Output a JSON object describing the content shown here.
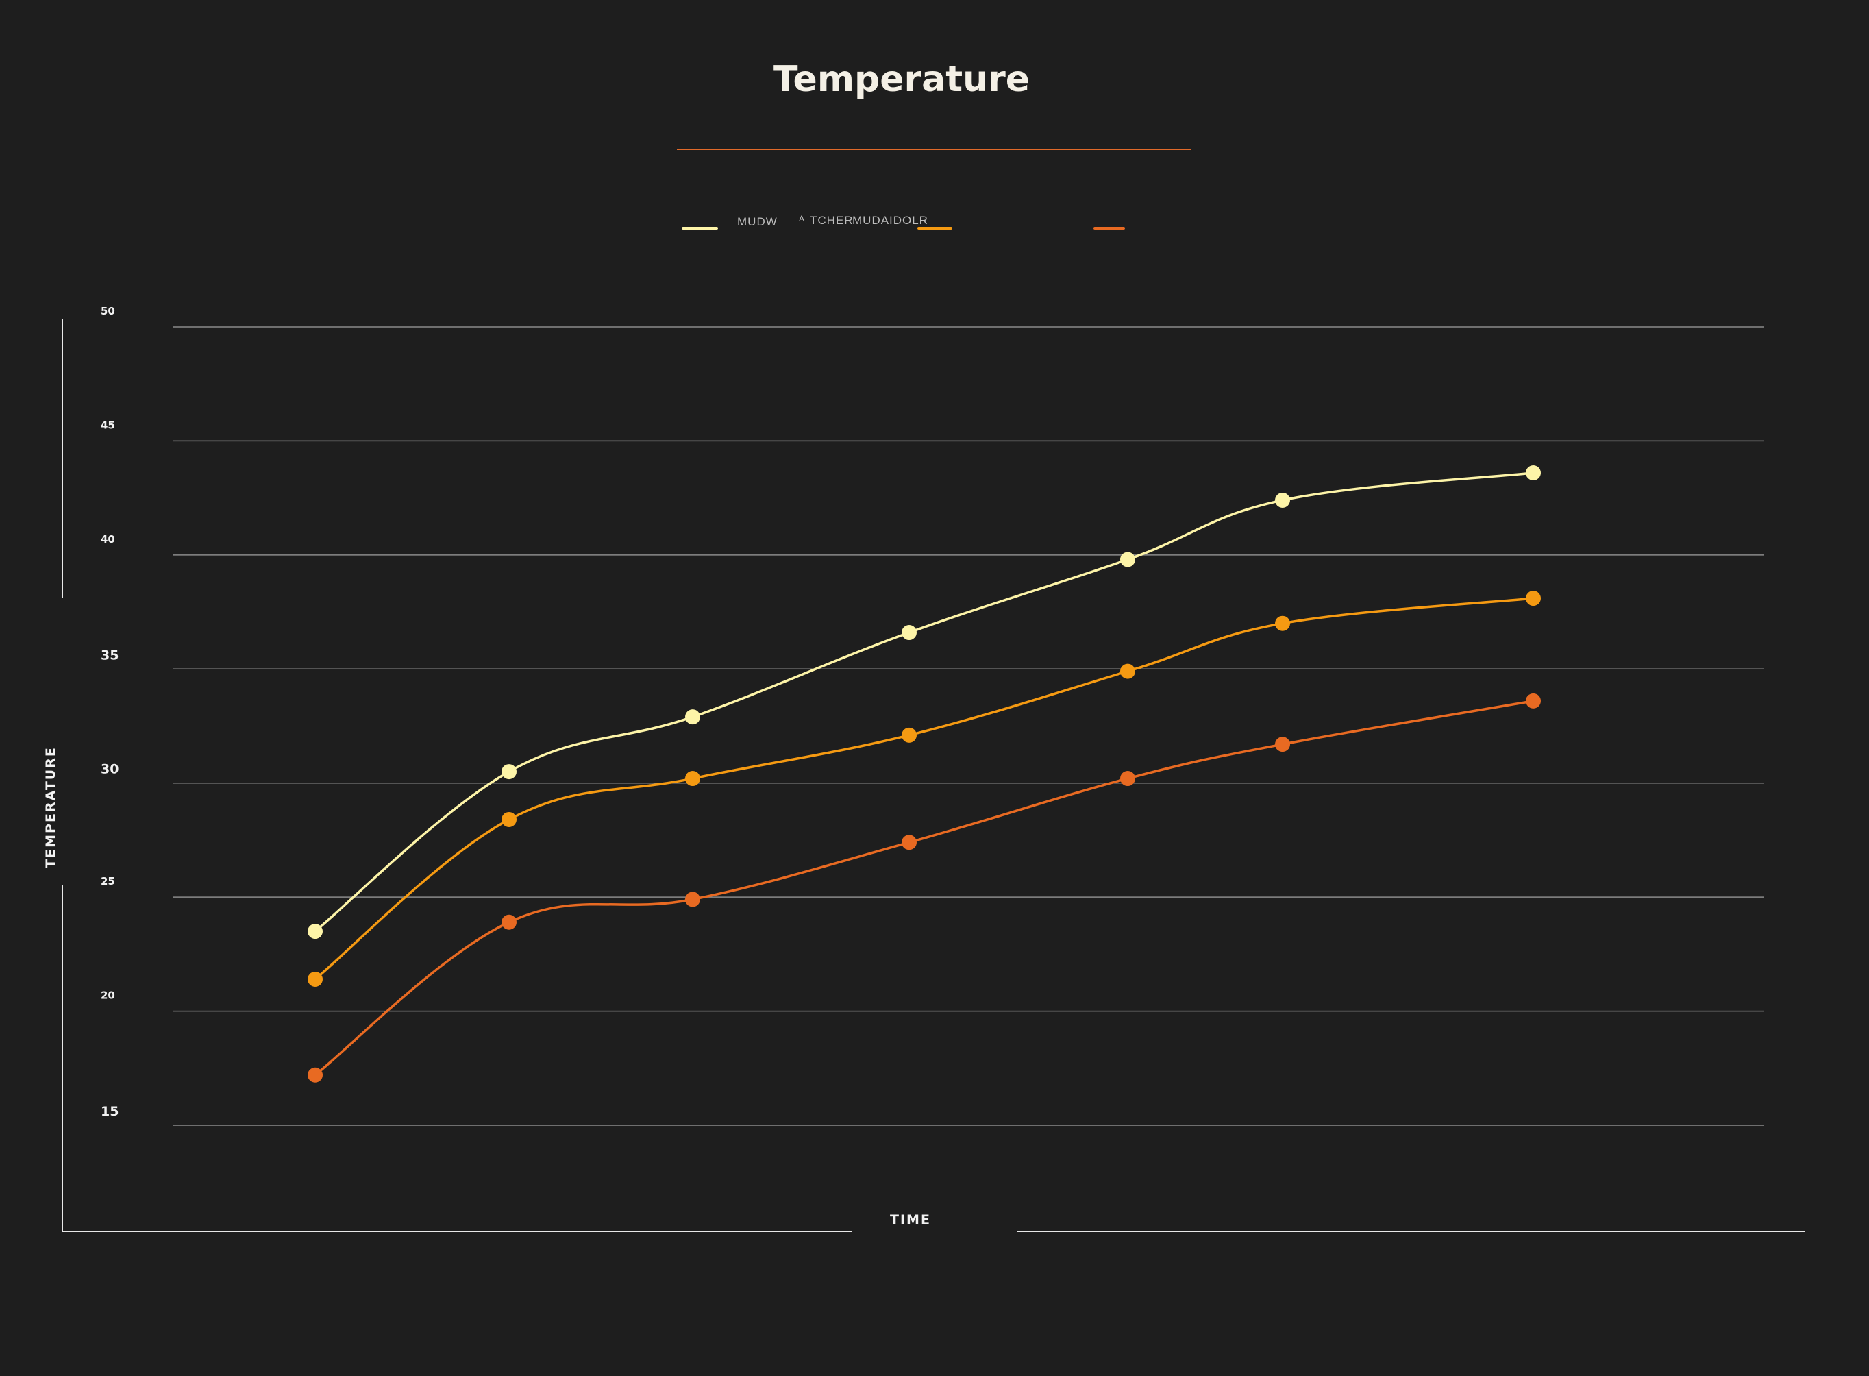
{
  "chart_data": {
    "type": "line",
    "title": "Temperature",
    "xlabel": "TIME",
    "ylabel": "TEMPERATURE",
    "ylim": [
      15,
      50
    ],
    "y_ticks": [
      "50",
      "45",
      "40",
      "35",
      "30",
      "25",
      "20",
      "15"
    ],
    "grid": true,
    "legend_position": "top",
    "legend_texts": [
      "MUDW",
      "A",
      "TCHER",
      "MUDAID",
      "OLR"
    ],
    "x": [
      1,
      2,
      3,
      4,
      5,
      6,
      7
    ],
    "series": [
      {
        "color": "#fdf4a8",
        "values": [
          23.5,
          30.5,
          32.9,
          36.6,
          39.8,
          42.4,
          43.6
        ]
      },
      {
        "color": "#f59a12",
        "values": [
          21.4,
          28.4,
          30.2,
          32.1,
          34.9,
          37.0,
          38.1
        ]
      },
      {
        "color": "#e86a22",
        "values": [
          17.2,
          23.9,
          24.9,
          27.4,
          30.2,
          31.7,
          33.6
        ]
      }
    ]
  },
  "colors": {
    "background": "#1e1e1e",
    "grid": "#8a8a8a",
    "axis": "#e8e8e8",
    "title_rule": "#e06a2a"
  }
}
